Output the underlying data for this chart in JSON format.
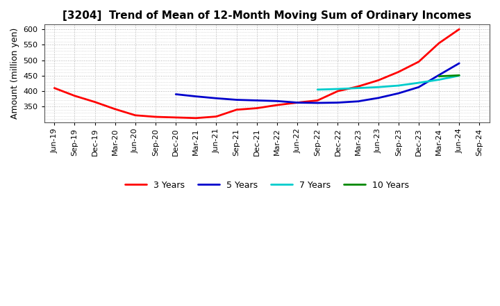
{
  "title": "[3204]  Trend of Mean of 12-Month Moving Sum of Ordinary Incomes",
  "ylabel": "Amount (million yen)",
  "ylim": [
    300,
    615
  ],
  "yticks": [
    350,
    400,
    450,
    500,
    550,
    600
  ],
  "background_color": "#ffffff",
  "grid_color": "#aaaaaa",
  "series": {
    "3 Years": {
      "color": "#ff0000",
      "x": [
        "Jun-19",
        "Sep-19",
        "Dec-19",
        "Mar-20",
        "Jun-20",
        "Sep-20",
        "Dec-20",
        "Mar-21",
        "Jun-21",
        "Sep-21",
        "Dec-21",
        "Mar-22",
        "Jun-22",
        "Sep-22",
        "Dec-22",
        "Mar-23",
        "Jun-23",
        "Sep-23",
        "Dec-23",
        "Mar-24",
        "Jun-24"
      ],
      "y": [
        410,
        385,
        365,
        342,
        322,
        317,
        315,
        313,
        318,
        340,
        345,
        355,
        363,
        370,
        400,
        415,
        435,
        462,
        495,
        555,
        600
      ]
    },
    "5 Years": {
      "color": "#0000cc",
      "x": [
        "Dec-20",
        "Mar-21",
        "Jun-21",
        "Sep-21",
        "Dec-21",
        "Mar-22",
        "Jun-22",
        "Sep-22",
        "Dec-22",
        "Mar-23",
        "Jun-23",
        "Sep-23",
        "Dec-23",
        "Mar-24",
        "Jun-24"
      ],
      "y": [
        390,
        383,
        377,
        372,
        370,
        368,
        363,
        362,
        363,
        367,
        378,
        393,
        413,
        452,
        490
      ]
    },
    "7 Years": {
      "color": "#00cccc",
      "x": [
        "Sep-22",
        "Dec-22",
        "Mar-23",
        "Jun-23",
        "Sep-23",
        "Dec-23",
        "Mar-24",
        "Jun-24"
      ],
      "y": [
        405,
        407,
        410,
        413,
        418,
        427,
        437,
        450
      ]
    },
    "10 Years": {
      "color": "#008800",
      "x": [
        "Mar-24",
        "Jun-24"
      ],
      "y": [
        448,
        451
      ]
    }
  },
  "x_labels": [
    "Jun-19",
    "Sep-19",
    "Dec-19",
    "Mar-20",
    "Jun-20",
    "Sep-20",
    "Dec-20",
    "Mar-21",
    "Jun-21",
    "Sep-21",
    "Dec-21",
    "Mar-22",
    "Jun-22",
    "Sep-22",
    "Dec-22",
    "Mar-23",
    "Jun-23",
    "Sep-23",
    "Dec-23",
    "Mar-24",
    "Jun-24",
    "Sep-24"
  ],
  "legend_order": [
    "3 Years",
    "5 Years",
    "7 Years",
    "10 Years"
  ],
  "title_fontsize": 11,
  "ylabel_fontsize": 9,
  "tick_fontsize": 8,
  "legend_fontsize": 9,
  "line_width": 2.0
}
